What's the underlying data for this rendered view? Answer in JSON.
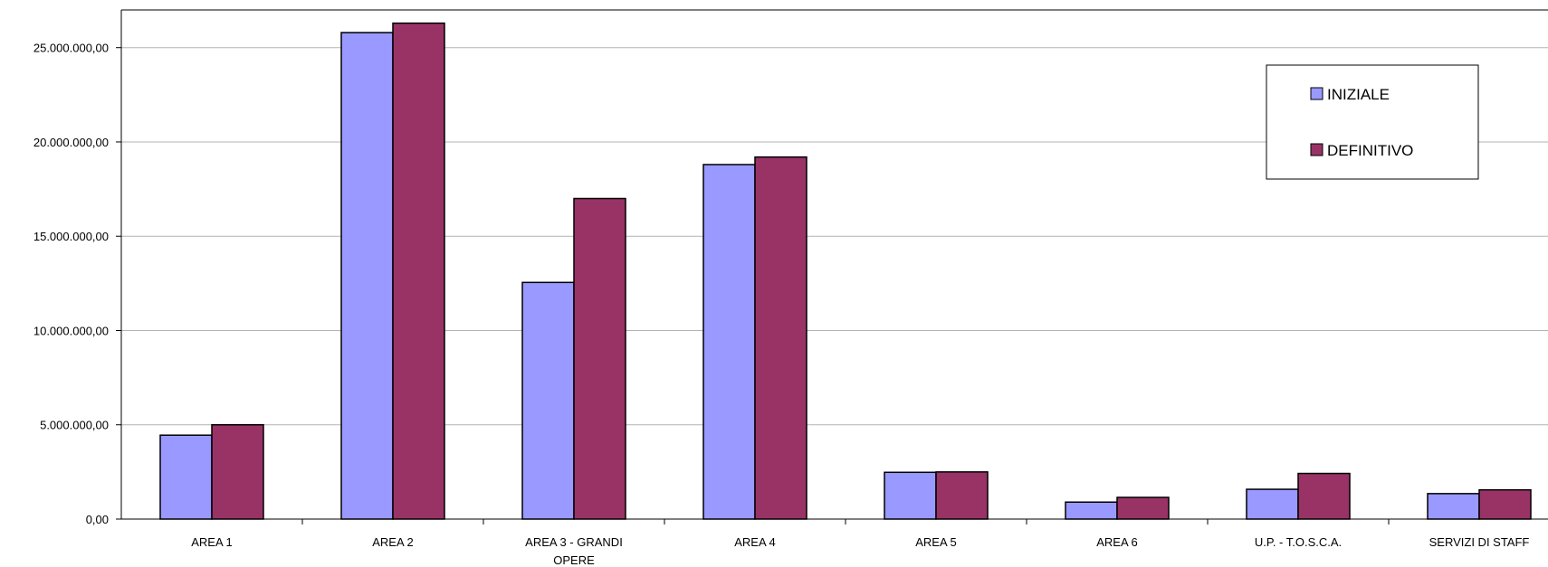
{
  "chart_data": {
    "type": "bar",
    "title": "",
    "xlabel": "",
    "ylabel": "",
    "categories": [
      "AREA 1",
      "AREA 2",
      "AREA 3 - GRANDI OPERE",
      "AREA 4",
      "AREA 5",
      "AREA 6",
      "U.P. - T.O.S.C.A.",
      "SERVIZI DI STAFF"
    ],
    "category_lines": [
      [
        "AREA 1"
      ],
      [
        "AREA 2"
      ],
      [
        "AREA 3 - GRANDI",
        "OPERE"
      ],
      [
        "AREA 4"
      ],
      [
        "AREA 5"
      ],
      [
        "AREA 6"
      ],
      [
        "U.P. - T.O.S.C.A."
      ],
      [
        "SERVIZI DI STAFF"
      ]
    ],
    "series": [
      {
        "name": "INIZIALE",
        "color": "#9999ff",
        "values": [
          4450000,
          25800000,
          12550000,
          18800000,
          2480000,
          900000,
          1580000,
          1350000
        ]
      },
      {
        "name": "DEFINITIVO",
        "color": "#993366",
        "values": [
          5000000,
          26300000,
          17000000,
          19200000,
          2500000,
          1150000,
          2420000,
          1550000
        ]
      }
    ],
    "ylim": [
      0,
      27000000
    ],
    "yticks": [
      0,
      5000000,
      10000000,
      15000000,
      20000000,
      25000000
    ],
    "ytick_labels": [
      "0,00",
      "5.000.000,00",
      "10.000.000,00",
      "15.000.000,00",
      "20.000.000,00",
      "25.000.000,00"
    ],
    "grid": true,
    "legend_position": "top-right"
  }
}
